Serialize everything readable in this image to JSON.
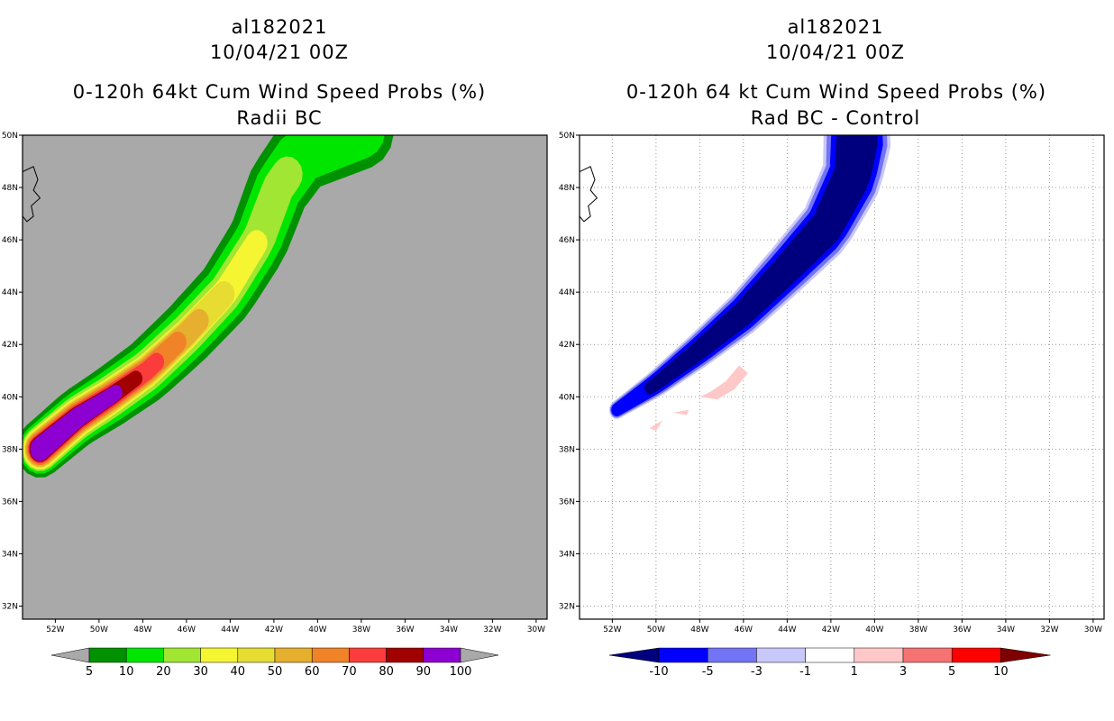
{
  "colors": {
    "land_gray": "#a9a9a9",
    "prob_scale": [
      "#009100",
      "#00e600",
      "#a0e632",
      "#f5f532",
      "#e6dc32",
      "#e6af2d",
      "#f08228",
      "#fa3c3c",
      "#a00000",
      "#8c00d2"
    ],
    "diff_scale": [
      "#00007f",
      "#0000ff",
      "#7373f5",
      "#c8c8fa",
      "#ffffff",
      "#ffc8c8",
      "#f57373",
      "#ff0000",
      "#7f0000"
    ]
  },
  "chart_data": [
    {
      "type": "contour-map",
      "storm": "al182021",
      "date": "10/04/21 00Z",
      "title": "0-120h 64kt Cum Wind Speed Probs (%)",
      "subtitle": "Radii BC",
      "x_ticks": [
        "52W",
        "50W",
        "48W",
        "46W",
        "44W",
        "42W",
        "40W",
        "38W",
        "36W",
        "34W",
        "32W",
        "30W"
      ],
      "y_ticks": [
        "32N",
        "34N",
        "36N",
        "38N",
        "40N",
        "42N",
        "44N",
        "46N",
        "48N",
        "50N"
      ],
      "lon_range": [
        -53.5,
        -29.5
      ],
      "lat_range": [
        31.5,
        50.0
      ],
      "colorbar_labels": [
        "5",
        "10",
        "20",
        "30",
        "40",
        "50",
        "60",
        "70",
        "80",
        "90",
        "100"
      ],
      "levels": [
        5,
        10,
        20,
        30,
        40,
        50,
        60,
        70,
        80,
        90,
        100
      ],
      "track": [
        [
          -52.7,
          38.0
        ],
        [
          -51.0,
          39.2
        ],
        [
          -49.5,
          40.0
        ],
        [
          -47.8,
          41.0
        ],
        [
          -46.0,
          42.4
        ],
        [
          -44.2,
          44.0
        ],
        [
          -42.7,
          46.0
        ],
        [
          -41.8,
          48.0
        ],
        [
          -40.7,
          49.3
        ],
        [
          -38.0,
          50.2
        ]
      ],
      "bands": [
        {
          "level": 5,
          "start": 0.0,
          "end": 1.0,
          "w0": 1.1,
          "w1": 1.5
        },
        {
          "level": 10,
          "start": 0.0,
          "end": 1.0,
          "w0": 0.95,
          "w1": 1.1
        },
        {
          "level": 20,
          "start": 0.0,
          "end": 0.82,
          "w0": 0.85,
          "w1": 0.7
        },
        {
          "level": 30,
          "start": 0.0,
          "end": 0.66,
          "w0": 0.78,
          "w1": 0.5
        },
        {
          "level": 40,
          "start": 0.0,
          "end": 0.55,
          "w0": 0.72,
          "w1": 0.5
        },
        {
          "level": 50,
          "start": 0.0,
          "end": 0.48,
          "w0": 0.68,
          "w1": 0.45
        },
        {
          "level": 60,
          "start": 0.0,
          "end": 0.42,
          "w0": 0.62,
          "w1": 0.4
        },
        {
          "level": 70,
          "start": 0.0,
          "end": 0.36,
          "w0": 0.55,
          "w1": 0.35
        },
        {
          "level": 80,
          "start": 0.0,
          "end": 0.3,
          "w0": 0.5,
          "w1": 0.3
        },
        {
          "level": 90,
          "start": 0.0,
          "end": 0.24,
          "w0": 0.45,
          "w1": 0.3
        },
        {
          "level": 100,
          "start": 0.0,
          "end": 0.2,
          "w0": 0.4,
          "w1": 0.25
        }
      ]
    },
    {
      "type": "contour-map",
      "storm": "al182021",
      "date": "10/04/21 00Z",
      "title": "0-120h 64 kt Cum Wind Speed Probs (%)",
      "subtitle": "Rad BC - Control",
      "x_ticks": [
        "52W",
        "50W",
        "48W",
        "46W",
        "44W",
        "42W",
        "40W",
        "38W",
        "36W",
        "34W",
        "32W",
        "30W"
      ],
      "y_ticks": [
        "32N",
        "34N",
        "36N",
        "38N",
        "40N",
        "42N",
        "44N",
        "46N",
        "48N",
        "50N"
      ],
      "lon_range": [
        -53.5,
        -29.5
      ],
      "lat_range": [
        31.5,
        50.0
      ],
      "colorbar_labels": [
        "-10",
        "-5",
        "-3",
        "-1",
        "1",
        "3",
        "5",
        "10"
      ],
      "levels": [
        -10,
        -5,
        -3,
        -1,
        1,
        3,
        5,
        10
      ],
      "track": [
        [
          -51.8,
          39.5
        ],
        [
          -50.0,
          40.5
        ],
        [
          -48.0,
          41.8
        ],
        [
          -46.0,
          43.2
        ],
        [
          -44.0,
          44.9
        ],
        [
          -42.2,
          46.5
        ],
        [
          -41.0,
          48.5
        ],
        [
          -40.8,
          49.8
        ]
      ],
      "bands": [
        {
          "level": -1,
          "start": 0.0,
          "end": 1.0,
          "w0": 0.35,
          "w1": 1.55
        },
        {
          "level": -3,
          "start": 0.0,
          "end": 1.0,
          "w0": 0.3,
          "w1": 1.4
        },
        {
          "level": -5,
          "start": 0.0,
          "end": 1.0,
          "w0": 0.25,
          "w1": 1.2
        },
        {
          "level": -10,
          "start": 0.12,
          "end": 1.0,
          "w0": 0.25,
          "w1": 0.95
        }
      ],
      "positive_blobs": [
        {
          "level": 1,
          "points": [
            [
              -48.0,
              40.0
            ],
            [
              -47.5,
              40.2
            ],
            [
              -46.8,
              40.6
            ],
            [
              -46.2,
              41.2
            ],
            [
              -45.8,
              40.9
            ],
            [
              -46.4,
              40.3
            ],
            [
              -47.2,
              39.9
            ]
          ]
        },
        {
          "level": 1,
          "points": [
            [
              -49.2,
              39.4
            ],
            [
              -48.5,
              39.5
            ],
            [
              -48.6,
              39.3
            ]
          ]
        },
        {
          "level": 1,
          "points": [
            [
              -50.3,
              38.8
            ],
            [
              -49.7,
              39.1
            ],
            [
              -50.0,
              38.7
            ]
          ]
        }
      ]
    }
  ]
}
